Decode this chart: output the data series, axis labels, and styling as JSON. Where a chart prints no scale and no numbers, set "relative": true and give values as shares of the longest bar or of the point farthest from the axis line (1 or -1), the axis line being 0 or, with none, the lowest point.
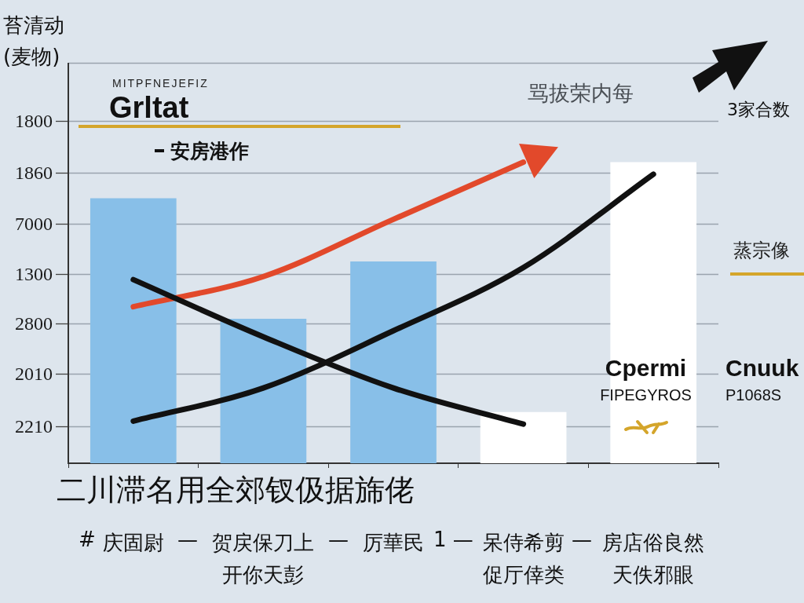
{
  "chart_data": {
    "type": "bar",
    "title": "Grltat",
    "subtitle": "MITPFNEJEFIZ",
    "xlabel": "二川滞名用全郊钗伋据旆佬",
    "ylabel": "苔清动 (麦物)",
    "categories": [
      "庆固尉",
      "贺戻保刀上开你天彭",
      "厉華民",
      "呆侍希剪促厅倖类",
      "房店俗良然天佚邪眼"
    ],
    "relative": true,
    "series": [
      {
        "colors": [
          "#88bfe8",
          "#88bfe8",
          "#88bfe8",
          "#ffffff",
          "#ffffff"
        ],
        "values": [
          0.88,
          0.48,
          0.67,
          0.17,
          1.0
        ]
      },
      {
        "type": "line",
        "name": "安房港作",
        "color": "#111111",
        "values": [
          0.61,
          0.42,
          0.25,
          0.13,
          null
        ]
      },
      {
        "type": "line",
        "color": "#111111",
        "values": [
          0.14,
          0.25,
          0.44,
          0.65,
          0.96
        ]
      },
      {
        "type": "line",
        "color": "#e2492b",
        "values": [
          0.52,
          0.62,
          0.81,
          1.0,
          null
        ]
      }
    ],
    "grid": "y",
    "legend": "top left",
    "marker": "none",
    "annotations": [
      "1800",
      "1860",
      "7000",
      "1300",
      "2800",
      "2010",
      "2210",
      "骂拔荣内每",
      "3家合数",
      "Cpermi",
      "FIPEGYROS",
      "Cnuuk",
      "P1068S",
      "蒸宗像",
      "#",
      "—",
      "—",
      "1 —",
      "—"
    ]
  }
}
